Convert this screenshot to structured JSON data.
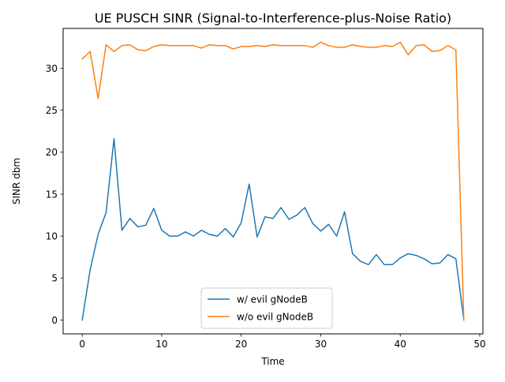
{
  "chart_data": {
    "type": "line",
    "title": "UE PUSCH SINR (Signal-to-Interference-plus-Noise Ratio)",
    "xlabel": "Time",
    "ylabel": "SINR dbm",
    "xlim": [
      -2.4,
      50.4
    ],
    "ylim": [
      -1.65,
      34.75
    ],
    "x_ticks": [
      0,
      10,
      20,
      30,
      40,
      50
    ],
    "y_ticks": [
      0,
      5,
      10,
      15,
      20,
      25,
      30
    ],
    "grid": false,
    "legend_position": "bottom-center",
    "x": [
      0,
      1,
      2,
      3,
      4,
      5,
      6,
      7,
      8,
      9,
      10,
      11,
      12,
      13,
      14,
      15,
      16,
      17,
      18,
      19,
      20,
      21,
      22,
      23,
      24,
      25,
      26,
      27,
      28,
      29,
      30,
      31,
      32,
      33,
      34,
      35,
      36,
      37,
      38,
      39,
      40,
      41,
      42,
      43,
      44,
      45,
      46,
      47,
      48
    ],
    "series": [
      {
        "name": "w/ evil gNodeB",
        "color": "#1f77b4",
        "values": [
          0.0,
          6.0,
          10.2,
          12.8,
          21.6,
          10.7,
          12.1,
          11.1,
          11.3,
          13.3,
          10.7,
          10.0,
          10.0,
          10.5,
          10.0,
          10.7,
          10.2,
          10.0,
          10.9,
          9.9,
          11.6,
          16.2,
          9.9,
          12.3,
          12.1,
          13.4,
          12.0,
          12.5,
          13.4,
          11.5,
          10.6,
          11.4,
          10.0,
          12.9,
          7.9,
          7.0,
          6.6,
          7.8,
          6.6,
          6.6,
          7.4,
          7.9,
          7.7,
          7.3,
          6.7,
          6.8,
          7.8,
          7.3,
          0.0
        ]
      },
      {
        "name": "w/o evil gNodeB",
        "color": "#ff7f0e",
        "values": [
          31.1,
          32.0,
          26.4,
          32.8,
          32.0,
          32.7,
          32.8,
          32.2,
          32.1,
          32.6,
          32.8,
          32.7,
          32.7,
          32.7,
          32.7,
          32.4,
          32.8,
          32.7,
          32.7,
          32.3,
          32.6,
          32.6,
          32.7,
          32.6,
          32.8,
          32.7,
          32.7,
          32.7,
          32.7,
          32.5,
          33.1,
          32.7,
          32.5,
          32.5,
          32.8,
          32.6,
          32.5,
          32.5,
          32.7,
          32.6,
          33.1,
          31.6,
          32.7,
          32.8,
          32.0,
          32.1,
          32.7,
          32.2,
          0.0
        ]
      }
    ]
  }
}
